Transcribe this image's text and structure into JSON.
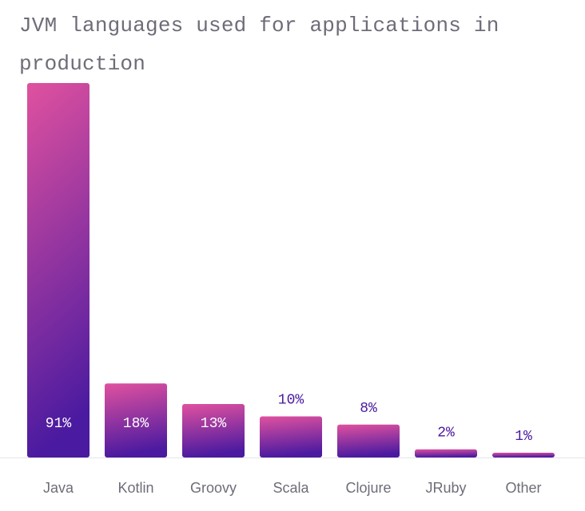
{
  "chart_data": {
    "type": "bar",
    "title": "JVM languages used for applications in production",
    "categories": [
      "Java",
      "Kotlin",
      "Groovy",
      "Scala",
      "Clojure",
      "JRuby",
      "Other"
    ],
    "values": [
      91,
      18,
      13,
      10,
      8,
      2,
      1
    ],
    "value_labels": [
      "91%",
      "18%",
      "13%",
      "10%",
      "8%",
      "2%",
      "1%"
    ],
    "unit": "%",
    "ylim": [
      0,
      91
    ],
    "grid": false,
    "colors": {
      "gradient_top": "#e0519f",
      "gradient_bottom": "#4a1aa0",
      "label_inside": "#ffffff",
      "label_outside": "#4a1aa0",
      "axis_line": "#e6e6ea",
      "text": "#6f6c78"
    }
  }
}
